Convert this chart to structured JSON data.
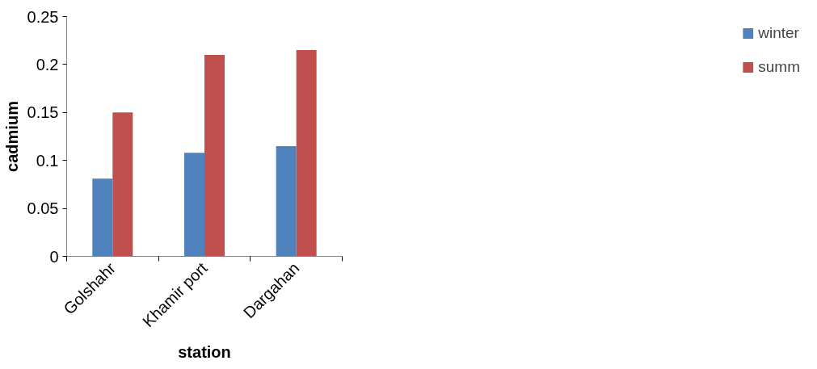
{
  "chart_data": {
    "type": "bar",
    "xlabel": "station",
    "ylabel": "cadmium",
    "categories": [
      "Golshahr",
      "Khamir port",
      "Dargahan"
    ],
    "series": [
      {
        "name": "winter",
        "color": "#4f81bd",
        "values": [
          0.081,
          0.108,
          0.115
        ]
      },
      {
        "name": "summ",
        "color": "#c0504d",
        "values": [
          0.15,
          0.21,
          0.215
        ]
      }
    ],
    "ylim": [
      0,
      0.25
    ],
    "yticks": [
      0,
      {
        "value": 0.05,
        "label": "0.05"
      },
      {
        "value": 0.1,
        "label": "0.1"
      },
      {
        "value": 0.15,
        "label": "0.15"
      },
      {
        "value": 0.2,
        "label": "0.2"
      },
      {
        "value": 0.25,
        "label": "0.25"
      }
    ],
    "grid": false,
    "legend": "right"
  }
}
